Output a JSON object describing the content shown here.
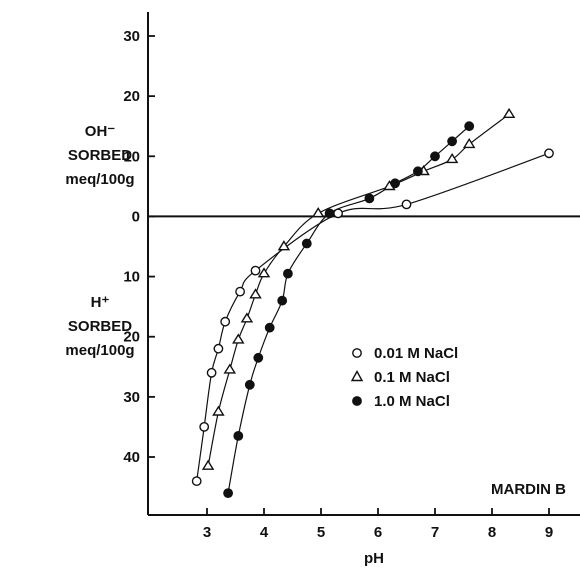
{
  "chart_data": {
    "type": "line",
    "panel_label": "MARDIN B",
    "xlabel": "pH",
    "ylabel_top": [
      "OH⁻",
      "SORBED",
      "meq/100g"
    ],
    "ylabel_bottom": [
      "H⁺",
      "SORBED",
      "meq/100g"
    ],
    "xlim": [
      2,
      9.5
    ],
    "ylim_display": [
      -49,
      34
    ],
    "x_ticks": [
      3,
      4,
      5,
      6,
      7,
      8,
      9
    ],
    "x_tick_labels": [
      "3",
      "4",
      "5",
      "6",
      "7",
      "8",
      "9"
    ],
    "y_ticks": [
      30,
      20,
      10,
      0,
      -10,
      -20,
      -30,
      -40
    ],
    "y_tick_labels": [
      "30",
      "20",
      "10",
      "0",
      "10",
      "20",
      "30",
      "40"
    ],
    "grid": false,
    "legend_position": "center-right",
    "series": [
      {
        "name": "0.01 M NaCl",
        "marker": "open-circle",
        "points": [
          [
            2.82,
            -44
          ],
          [
            2.95,
            -35
          ],
          [
            3.08,
            -26
          ],
          [
            3.2,
            -22
          ],
          [
            3.32,
            -17.5
          ],
          [
            3.58,
            -12.5
          ],
          [
            3.85,
            -9
          ],
          [
            5.3,
            0.5
          ],
          [
            6.5,
            2
          ],
          [
            9.0,
            10.5
          ]
        ]
      },
      {
        "name": "0.1 M NaCl",
        "marker": "open-triangle",
        "points": [
          [
            3.02,
            -41.5
          ],
          [
            3.2,
            -32.5
          ],
          [
            3.4,
            -25.5
          ],
          [
            3.55,
            -20.5
          ],
          [
            3.7,
            -17
          ],
          [
            3.85,
            -13
          ],
          [
            4.0,
            -9.5
          ],
          [
            4.35,
            -5
          ],
          [
            4.95,
            0.5
          ],
          [
            6.2,
            5
          ],
          [
            6.8,
            7.5
          ],
          [
            7.3,
            9.5
          ],
          [
            7.6,
            12
          ],
          [
            8.3,
            17
          ]
        ]
      },
      {
        "name": "1.0 M NaCl",
        "marker": "filled-circle",
        "points": [
          [
            3.37,
            -46
          ],
          [
            3.55,
            -36.5
          ],
          [
            3.75,
            -28
          ],
          [
            3.9,
            -23.5
          ],
          [
            4.1,
            -18.5
          ],
          [
            4.32,
            -14
          ],
          [
            4.42,
            -9.5
          ],
          [
            4.75,
            -4.5
          ],
          [
            5.15,
            0.5
          ],
          [
            5.85,
            3
          ],
          [
            6.3,
            5.5
          ],
          [
            6.7,
            7.5
          ],
          [
            7.0,
            10
          ],
          [
            7.3,
            12.5
          ],
          [
            7.6,
            15
          ]
        ]
      }
    ]
  }
}
